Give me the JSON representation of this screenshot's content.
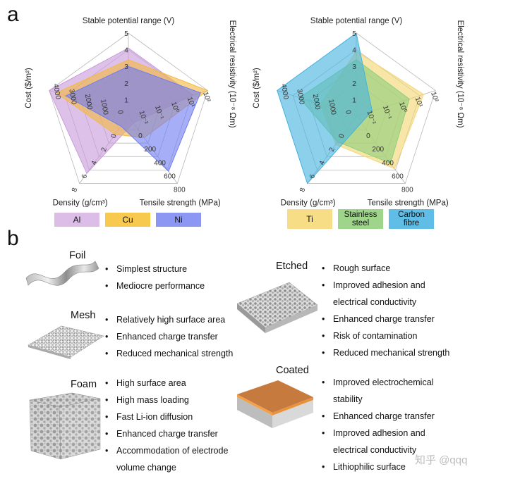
{
  "panel_a_label": "a",
  "panel_b_label": "b",
  "chart_data": [
    {
      "type": "radar",
      "axes": [
        {
          "label": "Stable potential range (V)",
          "ticks": [
            "1",
            "2",
            "3",
            "4",
            "5"
          ],
          "range": [
            0,
            5
          ]
        },
        {
          "label": "Electrical resistivity (10⁻⁸ Ωm)",
          "ticks": [
            "10⁻²",
            "10⁻¹",
            "10⁰",
            "10¹",
            "10²"
          ]
        },
        {
          "label": "Tensile strength (MPa)",
          "ticks": [
            "0",
            "200",
            "400",
            "600",
            "800"
          ],
          "range": [
            0,
            800
          ]
        },
        {
          "label": "Density (g/cm³)",
          "ticks": [
            "0",
            "2",
            "4",
            "6",
            "8"
          ],
          "range": [
            0,
            8
          ]
        },
        {
          "label": "Cost ($/m²)",
          "ticks": [
            "0",
            "1000",
            "2000",
            "3000",
            "4000"
          ],
          "range": [
            0,
            4000
          ]
        }
      ],
      "series": [
        {
          "name": "Al",
          "color": "#c99bdb",
          "values": [
            0.82,
            0.82,
            0.1,
            0.85,
            1.0
          ]
        },
        {
          "name": "Cu",
          "color": "#f4b942",
          "values": [
            0.68,
            1.0,
            0.32,
            0.27,
            0.91
          ]
        },
        {
          "name": "Ni",
          "color": "#6f7df2",
          "values": [
            0.6,
            0.91,
            0.82,
            0.15,
            0.79
          ]
        }
      ]
    },
    {
      "type": "radar",
      "axes": [
        {
          "label": "Stable potential range (V)",
          "ticks": [
            "1",
            "2",
            "3",
            "4",
            "5"
          ],
          "range": [
            0,
            5
          ]
        },
        {
          "label": "Electrical resistivity (10⁻⁸ Ωm)",
          "ticks": [
            "10⁻²",
            "10⁻¹",
            "10⁰",
            "10¹",
            "10²"
          ]
        },
        {
          "label": "Tensile strength (MPa)",
          "ticks": [
            "0",
            "200",
            "400",
            "600",
            "800"
          ],
          "range": [
            0,
            800
          ]
        },
        {
          "label": "Density (g/cm³)",
          "ticks": [
            "0",
            "2",
            "4",
            "6",
            "8"
          ],
          "range": [
            0,
            8
          ]
        },
        {
          "label": "Cost ($/m²)",
          "ticks": [
            "0",
            "1000",
            "2000",
            "3000",
            "4000"
          ],
          "range": [
            0,
            4000
          ]
        }
      ],
      "series": [
        {
          "name": "Ti",
          "color": "#f4d774",
          "values": [
            0.78,
            0.85,
            0.78,
            0.42,
            0.45
          ]
        },
        {
          "name": "Stainless steel",
          "color": "#8fcf7a",
          "values": [
            0.68,
            0.67,
            0.7,
            0.38,
            0.72
          ]
        },
        {
          "name": "Carbon fibre",
          "color": "#45b3e0",
          "values": [
            1.0,
            0.2,
            0.1,
            1.0,
            1.0
          ]
        }
      ]
    }
  ],
  "legend_left": [
    {
      "label": "Al",
      "color": "#dcbde8"
    },
    {
      "label": "Cu",
      "color": "#f7c94f"
    },
    {
      "label": "Ni",
      "color": "#8c97f3"
    }
  ],
  "legend_right": [
    {
      "label": "Ti",
      "color": "#f7dd86"
    },
    {
      "label": "Stainless steel",
      "line1": "Stainless",
      "line2": "steel",
      "color": "#9fd48b"
    },
    {
      "label": "Carbon fibre",
      "line1": "Carbon",
      "line2": "fibre",
      "color": "#5fbde6"
    }
  ],
  "collectors": {
    "foil": {
      "label": "Foil",
      "points": [
        "Simplest structure",
        "Mediocre performance"
      ]
    },
    "mesh": {
      "label": "Mesh",
      "points": [
        "Relatively high surface area",
        "Enhanced charge transfer",
        "Reduced mechanical strength"
      ]
    },
    "foam": {
      "label": "Foam",
      "points": [
        "High surface area",
        "High mass loading",
        "Fast Li-ion diffusion",
        "Enhanced charge transfer",
        "Accommodation of electrode",
        "volume change"
      ]
    },
    "etched": {
      "label": "Etched",
      "points": [
        "Rough surface",
        "Improved adhesion and",
        "electrical conductivity",
        "Enhanced charge transfer",
        "Risk of contamination",
        "Reduced mechanical strength"
      ]
    },
    "coated": {
      "label": "Coated",
      "points": [
        "Improved electrochemical",
        "stability",
        "Enhanced charge transfer",
        "Improved adhesion and",
        "electrical conductivity",
        "Lithiophilic surface"
      ]
    }
  },
  "bullet_char": "•",
  "watermark": "知乎 @qqq"
}
